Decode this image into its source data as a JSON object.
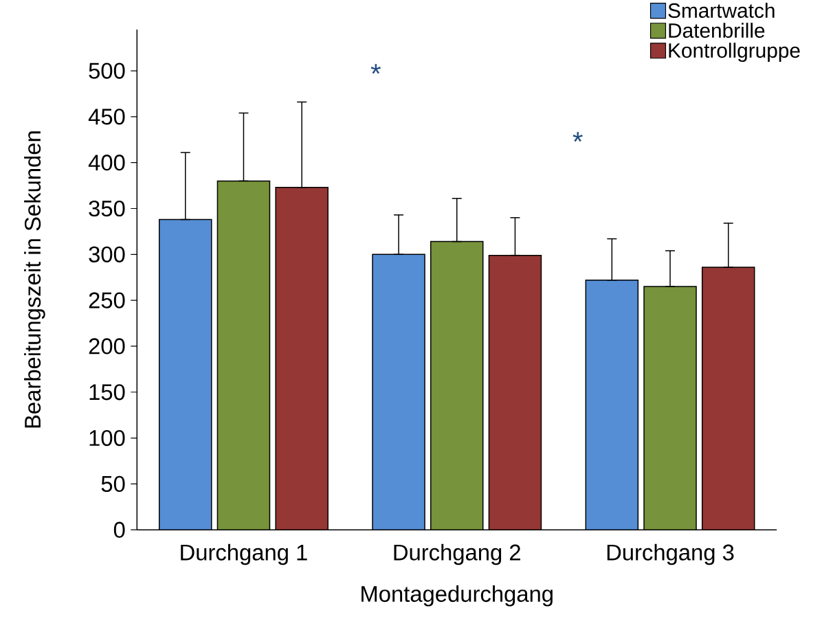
{
  "chart_data": {
    "type": "bar",
    "xlabel": "Montagedurchgang",
    "ylabel": "Bearbeitungszeit in Sekunden",
    "categories": [
      "Durchgang 1",
      "Durchgang 2",
      "Durchgang 3"
    ],
    "series": [
      {
        "name": "Smartwatch",
        "color": "#558ed5",
        "values": [
          338,
          300,
          272
        ],
        "errors": [
          [
            338,
            411
          ],
          [
            300,
            343
          ],
          [
            272,
            317
          ]
        ]
      },
      {
        "name": "Datenbrille",
        "color": "#77933c",
        "values": [
          380,
          314,
          265
        ],
        "errors": [
          [
            380,
            454
          ],
          [
            314,
            361
          ],
          [
            265,
            304
          ]
        ]
      },
      {
        "name": "Kontrollgruppe",
        "color": "#953735",
        "values": [
          373,
          299,
          286
        ],
        "errors": [
          [
            373,
            466
          ],
          [
            299,
            340
          ],
          [
            286,
            334
          ]
        ]
      }
    ],
    "ylim": [
      0,
      545
    ],
    "yticks": [
      0,
      50,
      100,
      150,
      200,
      250,
      300,
      350,
      400,
      450,
      500
    ],
    "annotations": [
      "*",
      "*"
    ],
    "legend": "top right",
    "grid": false
  }
}
